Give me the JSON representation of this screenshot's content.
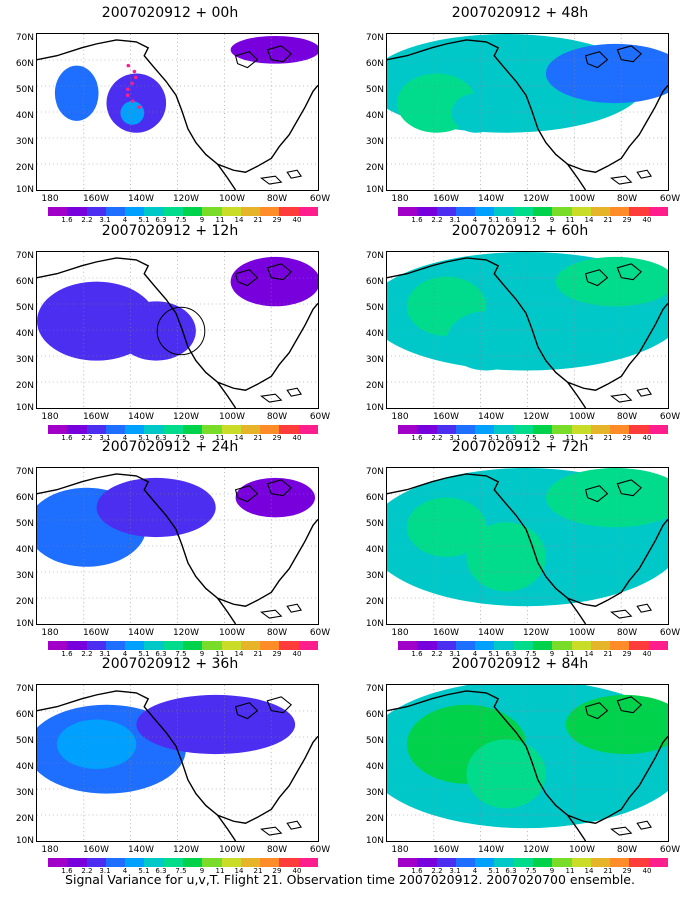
{
  "panels": [
    {
      "title": "2007020912 + 00h"
    },
    {
      "title": "2007020912 + 48h"
    },
    {
      "title": "2007020912 + 12h"
    },
    {
      "title": "2007020912 + 60h"
    },
    {
      "title": "2007020912 + 24h"
    },
    {
      "title": "2007020912 + 72h"
    },
    {
      "title": "2007020912 + 36h"
    },
    {
      "title": "2007020912 + 84h"
    }
  ],
  "lat_labels": [
    "70N",
    "60N",
    "50N",
    "40N",
    "30N",
    "20N",
    "10N"
  ],
  "lon_labels": [
    "180",
    "160W",
    "140W",
    "120W",
    "100W",
    "80W",
    "60W"
  ],
  "colorbar": {
    "labels": [
      "1.6",
      "2.2",
      "3.1",
      "4",
      "5.1",
      "6.3",
      "7.5",
      "9",
      "11",
      "14",
      "21",
      "29",
      "40"
    ],
    "colors": [
      "#a000c8",
      "#7800dc",
      "#4b2ef0",
      "#1e6eff",
      "#00a0ff",
      "#00c8c8",
      "#00dc8c",
      "#00d24b",
      "#78dc28",
      "#c8dc28",
      "#e6b428",
      "#ff8c28",
      "#ff3c3c",
      "#ff1e8c"
    ]
  },
  "caption": "Signal Variance for u,v,T. Flight 21. Observation time 2007020912. 2007020700 ensemble."
}
